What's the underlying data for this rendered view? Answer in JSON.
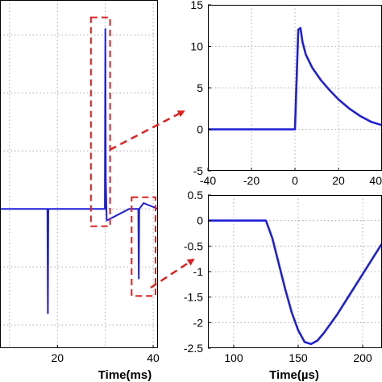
{
  "chart_data": [
    {
      "type": "line",
      "title": "",
      "xlabel": "Time(ms)",
      "ylabel": "",
      "xlim": [
        8,
        41
      ],
      "ylim": [
        -1.2,
        1.8
      ],
      "x_ticks": [
        20,
        40
      ],
      "grid": true,
      "color": "#1f1fd8",
      "series": [
        {
          "x": [
            8,
            17.9,
            18,
            18.1,
            28,
            29.9,
            30,
            30.1,
            30.3,
            35,
            36.9,
            37,
            37.1,
            38,
            41
          ],
          "y": [
            0,
            0,
            -0.9,
            0,
            0,
            0,
            1.55,
            0.25,
            -0.1,
            0,
            0,
            -0.6,
            0,
            0.05,
            0
          ]
        }
      ],
      "annotations": [
        {
          "shape": "dashed-box",
          "color": "#e02020",
          "x_range": [
            27,
            31
          ],
          "y_range": [
            -0.15,
            1.65
          ]
        },
        {
          "shape": "dashed-box",
          "color": "#e02020",
          "x_range": [
            35.5,
            40.5
          ],
          "y_range": [
            -0.75,
            0.1
          ]
        }
      ]
    },
    {
      "type": "line",
      "title": "",
      "xlabel": "",
      "ylabel": "",
      "xlim": [
        -40,
        40
      ],
      "ylim": [
        -5,
        15
      ],
      "x_ticks": [
        -40,
        -20,
        0,
        20,
        40
      ],
      "y_ticks": [
        -5,
        0,
        5,
        10,
        15
      ],
      "x_tick_labels": [
        "-40",
        "-20",
        "0",
        "20",
        "40"
      ],
      "y_tick_labels": [
        "-5",
        "0",
        "5",
        "10",
        "15"
      ],
      "grid": true,
      "color": "#1f1fd8",
      "series": [
        {
          "x": [
            -40,
            0,
            1.5,
            2.5,
            3.5,
            5,
            8,
            12,
            16,
            20,
            25,
            30,
            35,
            40
          ],
          "y": [
            0,
            0,
            12,
            12.2,
            10.5,
            9,
            7.4,
            5.9,
            4.7,
            3.6,
            2.5,
            1.6,
            0.9,
            0.5
          ]
        }
      ]
    },
    {
      "type": "line",
      "title": "",
      "xlabel": "Time(µs)",
      "ylabel": "",
      "xlim": [
        80,
        215
      ],
      "ylim": [
        -2.5,
        0.5
      ],
      "x_ticks": [
        100,
        150,
        200
      ],
      "y_ticks": [
        -2.5,
        -2,
        -1.5,
        -1,
        -0.5,
        0,
        0.5
      ],
      "x_tick_labels": [
        "100",
        "150",
        "200"
      ],
      "y_tick_labels": [
        "-2.5",
        "-2",
        "-1.5",
        "-1",
        "-0.5",
        "0",
        "0.5"
      ],
      "grid": true,
      "color": "#1f1fd8",
      "series": [
        {
          "x": [
            80,
            125,
            130,
            135,
            140,
            145,
            150,
            155,
            160,
            165,
            170,
            180,
            190,
            200,
            210,
            215
          ],
          "y": [
            0,
            0,
            -0.35,
            -0.85,
            -1.35,
            -1.8,
            -2.15,
            -2.38,
            -2.42,
            -2.35,
            -2.2,
            -1.85,
            -1.45,
            -1.05,
            -0.65,
            -0.45
          ]
        }
      ]
    }
  ]
}
